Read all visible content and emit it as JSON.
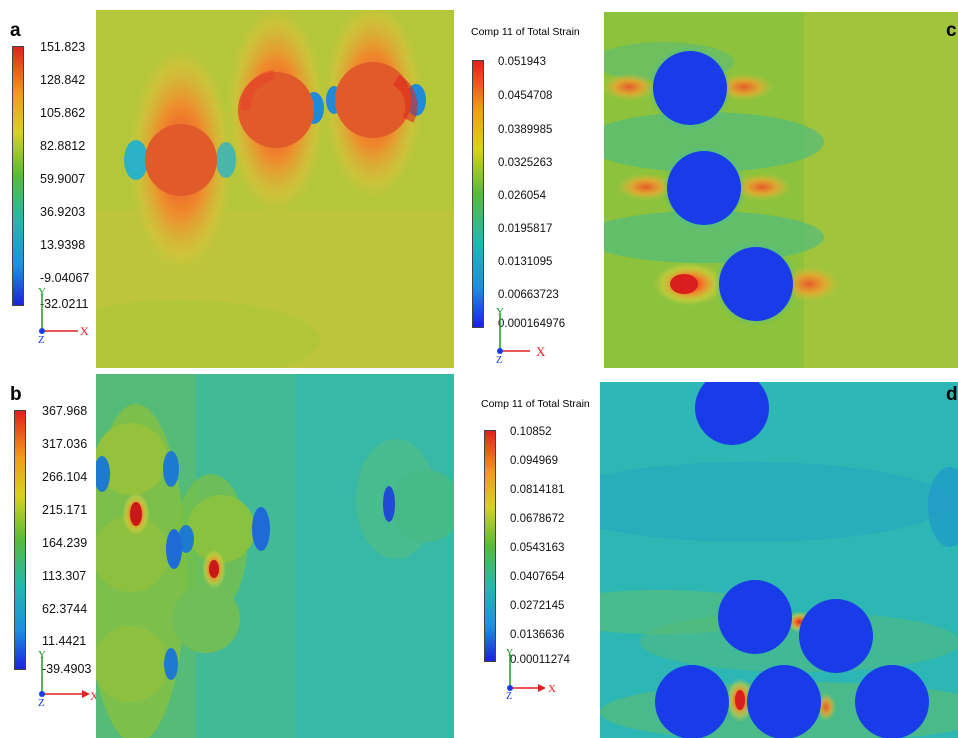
{
  "panels": {
    "a": {
      "letter": "a",
      "ticks": [
        "151.823",
        "128.842",
        "105.862",
        "82.8812",
        "59.9007",
        "36.9203",
        "13.9398",
        "-9.04067",
        "-32.0211"
      ]
    },
    "b": {
      "letter": "b",
      "ticks": [
        "367.968",
        "317.036",
        "266.104",
        "215.171",
        "164.239",
        "113.307",
        "62.3744",
        "11.4421",
        "-39.4903"
      ]
    },
    "c": {
      "letter": "c",
      "legend_title": "Comp 11 of Total Strain",
      "ticks": [
        "0.051943",
        "0.0454708",
        "0.0389985",
        "0.0325263",
        "0.026054",
        "0.0195817",
        "0.0131095",
        "0.00663723",
        "0.000164976"
      ]
    },
    "d": {
      "letter": "d",
      "legend_title": "Comp 11 of Total Strain",
      "ticks": [
        "0.10852",
        "0.094969",
        "0.0814181",
        "0.0678672",
        "0.0543163",
        "0.0407654",
        "0.0272145",
        "0.0136636",
        "0.00011274"
      ]
    }
  },
  "axes": {
    "x": "X",
    "y": "Y",
    "z": "Z"
  },
  "colors": {
    "high": "#e0301e",
    "mid": "#9ac83a",
    "low": "#1236d6",
    "cyan": "#3fc0b8",
    "inclusion": "#1a3ce8"
  }
}
